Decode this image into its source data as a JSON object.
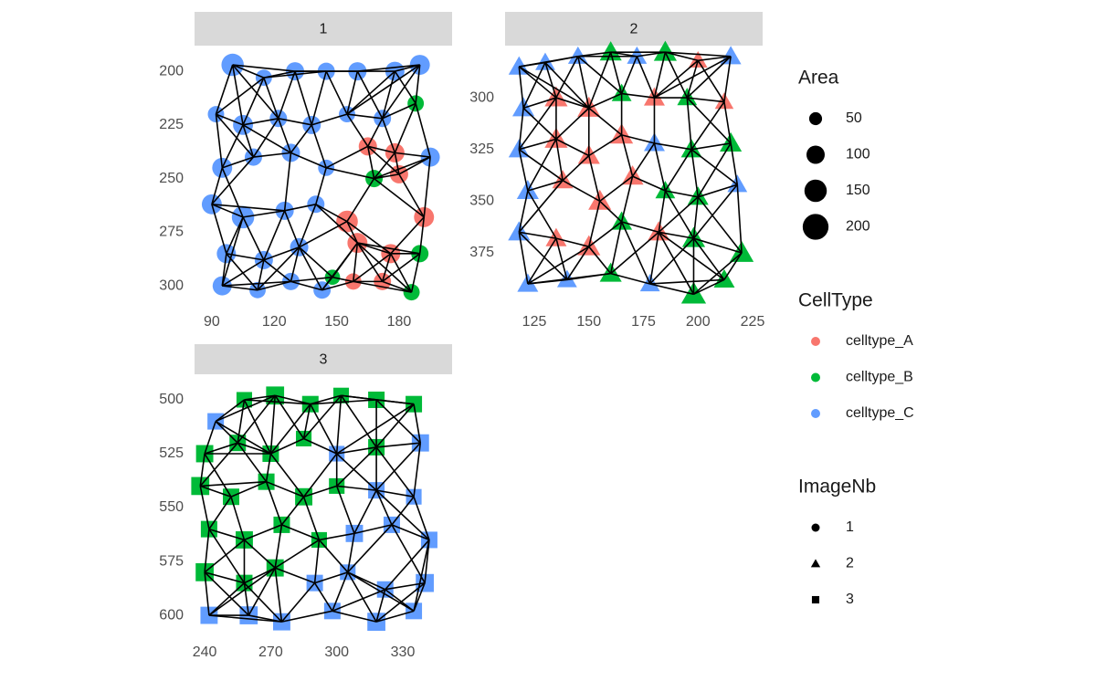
{
  "chart_data": {
    "type": "scatter",
    "facets": [
      {
        "title": "1",
        "xlim": [
          81.7,
          205.5
        ],
        "ylim": [
          307.2,
          188.9
        ],
        "xticks": [
          90,
          120,
          150,
          180
        ],
        "yticks": [
          200,
          225,
          250,
          275,
          300
        ],
        "x": [
          100,
          115,
          130,
          145,
          160,
          178,
          190,
          92,
          105,
          122,
          138,
          155,
          172,
          188,
          95,
          110,
          128,
          145,
          165,
          178,
          195,
          90,
          105,
          125,
          140,
          155,
          168,
          180,
          192,
          97,
          115,
          132,
          148,
          160,
          176,
          190,
          95,
          112,
          128,
          143,
          158,
          172,
          186
        ],
        "y": [
          197,
          203,
          200,
          200,
          200,
          200,
          197,
          220,
          225,
          222,
          225,
          220,
          222,
          215,
          245,
          240,
          238,
          245,
          235,
          238,
          240,
          262,
          268,
          265,
          262,
          270,
          250,
          248,
          268,
          285,
          288,
          282,
          296,
          280,
          285,
          285,
          300,
          302,
          298,
          302,
          298,
          298,
          303
        ],
        "area": [
          150,
          80,
          100,
          90,
          100,
          110,
          120,
          80,
          120,
          90,
          100,
          80,
          90,
          80,
          120,
          90,
          100,
          80,
          100,
          110,
          110,
          120,
          150,
          100,
          90,
          140,
          90,
          100,
          120,
          110,
          100,
          100,
          70,
          120,
          110,
          90,
          110,
          80,
          90,
          90,
          80,
          90,
          80
        ],
        "cell_type": [
          "celltype_C",
          "celltype_C",
          "celltype_C",
          "celltype_C",
          "celltype_C",
          "celltype_C",
          "celltype_C",
          "celltype_C",
          "celltype_C",
          "celltype_C",
          "celltype_C",
          "celltype_C",
          "celltype_C",
          "celltype_B",
          "celltype_C",
          "celltype_C",
          "celltype_C",
          "celltype_C",
          "celltype_A",
          "celltype_A",
          "celltype_C",
          "celltype_C",
          "celltype_C",
          "celltype_C",
          "celltype_C",
          "celltype_A",
          "celltype_B",
          "celltype_A",
          "celltype_A",
          "celltype_C",
          "celltype_C",
          "celltype_C",
          "celltype_B",
          "celltype_A",
          "celltype_A",
          "celltype_B",
          "celltype_C",
          "celltype_C",
          "celltype_C",
          "celltype_C",
          "celltype_A",
          "celltype_A",
          "celltype_B"
        ]
      },
      {
        "title": "2",
        "xlim": [
          111.6,
          229.6
        ],
        "ylim": [
          398.4,
          275.7
        ],
        "xticks": [
          125,
          150,
          175,
          200,
          225
        ],
        "yticks": [
          300,
          325,
          350,
          375
        ],
        "x": [
          118,
          130,
          145,
          160,
          172,
          185,
          200,
          215,
          120,
          135,
          150,
          165,
          180,
          195,
          212,
          118,
          135,
          150,
          165,
          180,
          197,
          215,
          122,
          138,
          155,
          170,
          185,
          200,
          218,
          118,
          135,
          150,
          165,
          182,
          198,
          220,
          122,
          140,
          160,
          178,
          198,
          212
        ],
        "y": [
          285,
          283,
          280,
          278,
          280,
          278,
          282,
          280,
          305,
          300,
          305,
          298,
          300,
          300,
          302,
          325,
          320,
          328,
          318,
          322,
          325,
          322,
          345,
          340,
          350,
          338,
          345,
          348,
          342,
          365,
          368,
          372,
          360,
          365,
          368,
          375,
          390,
          388,
          385,
          390,
          395,
          388
        ],
        "area": [
          100,
          90,
          90,
          110,
          90,
          120,
          80,
          100,
          110,
          120,
          120,
          90,
          100,
          90,
          80,
          100,
          120,
          110,
          120,
          100,
          100,
          110,
          110,
          100,
          120,
          110,
          90,
          100,
          90,
          110,
          100,
          120,
          100,
          110,
          120,
          130,
          100,
          90,
          110,
          90,
          140,
          100
        ],
        "cell_type": [
          "celltype_C",
          "celltype_C",
          "celltype_C",
          "celltype_B",
          "celltype_C",
          "celltype_B",
          "celltype_A",
          "celltype_C",
          "celltype_C",
          "celltype_A",
          "celltype_A",
          "celltype_B",
          "celltype_A",
          "celltype_B",
          "celltype_A",
          "celltype_C",
          "celltype_A",
          "celltype_A",
          "celltype_A",
          "celltype_C",
          "celltype_B",
          "celltype_B",
          "celltype_C",
          "celltype_A",
          "celltype_A",
          "celltype_A",
          "celltype_B",
          "celltype_B",
          "celltype_C",
          "celltype_C",
          "celltype_A",
          "celltype_A",
          "celltype_B",
          "celltype_A",
          "celltype_B",
          "celltype_B",
          "celltype_C",
          "celltype_C",
          "celltype_B",
          "celltype_C",
          "celltype_B",
          "celltype_B"
        ]
      },
      {
        "title": "3",
        "xlim": [
          235.4,
          352.4
        ],
        "ylim": [
          607.6,
          489
        ],
        "xticks": [
          240,
          270,
          300,
          330
        ],
        "yticks": [
          500,
          525,
          550,
          575,
          600
        ],
        "x": [
          245,
          258,
          272,
          288,
          302,
          318,
          335,
          240,
          255,
          270,
          285,
          300,
          318,
          338,
          238,
          252,
          268,
          285,
          300,
          318,
          335,
          242,
          258,
          275,
          292,
          308,
          325,
          342,
          240,
          258,
          272,
          290,
          305,
          322,
          340,
          242,
          260,
          275,
          298,
          318,
          335
        ],
        "y": [
          510,
          500,
          498,
          502,
          498,
          500,
          502,
          525,
          520,
          525,
          518,
          525,
          522,
          520,
          540,
          545,
          538,
          545,
          540,
          542,
          545,
          560,
          565,
          558,
          565,
          562,
          558,
          565,
          580,
          585,
          578,
          585,
          580,
          588,
          585,
          600,
          600,
          603,
          598,
          603,
          598
        ],
        "area": [
          100,
          90,
          120,
          100,
          90,
          100,
          100,
          110,
          100,
          100,
          90,
          90,
          100,
          110,
          120,
          100,
          100,
          110,
          90,
          100,
          90,
          100,
          110,
          100,
          90,
          110,
          100,
          100,
          120,
          100,
          110,
          100,
          90,
          100,
          120,
          110,
          120,
          110,
          100,
          120,
          100
        ],
        "cell_type": [
          "celltype_C",
          "celltype_B",
          "celltype_B",
          "celltype_B",
          "celltype_B",
          "celltype_B",
          "celltype_B",
          "celltype_B",
          "celltype_B",
          "celltype_B",
          "celltype_B",
          "celltype_C",
          "celltype_B",
          "celltype_C",
          "celltype_B",
          "celltype_B",
          "celltype_B",
          "celltype_B",
          "celltype_B",
          "celltype_C",
          "celltype_C",
          "celltype_B",
          "celltype_B",
          "celltype_B",
          "celltype_B",
          "celltype_C",
          "celltype_C",
          "celltype_C",
          "celltype_B",
          "celltype_B",
          "celltype_B",
          "celltype_C",
          "celltype_C",
          "celltype_C",
          "celltype_C",
          "celltype_C",
          "celltype_C",
          "celltype_C",
          "celltype_C",
          "celltype_C",
          "celltype_C"
        ]
      }
    ],
    "size_legend": {
      "title": "Area",
      "values": [
        50,
        100,
        150,
        200
      ]
    },
    "color_legend": {
      "title": "CellType",
      "categories": [
        "celltype_A",
        "celltype_B",
        "celltype_C"
      ],
      "colors": [
        "#F8766D",
        "#00BA38",
        "#619CFF"
      ]
    },
    "shape_legend": {
      "title": "ImageNb",
      "categories": [
        "1",
        "2",
        "3"
      ],
      "shapes": [
        "circle",
        "triangle",
        "square"
      ]
    }
  }
}
